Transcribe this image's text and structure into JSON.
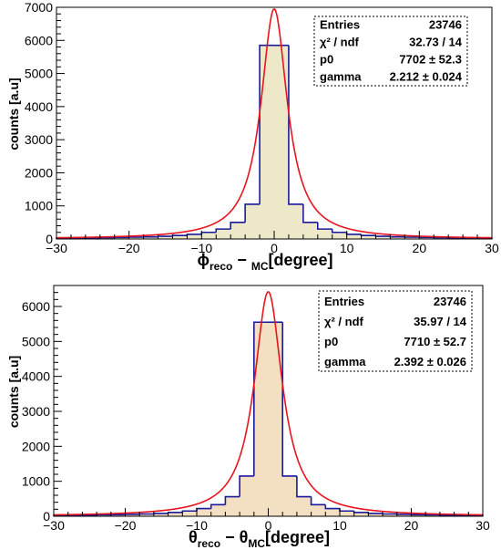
{
  "chart_data": [
    {
      "type": "histogram",
      "ylabel": "counts [a.u]",
      "xlabel": {
        "symbol": "ϕ",
        "sub1": "reco",
        "minus": "− ",
        "sub2": "MC",
        "unit": "[degree]"
      },
      "xlim": [
        -30,
        30
      ],
      "ylim": [
        0,
        7000
      ],
      "xticks": [
        "−30",
        "−20",
        "−10",
        "0",
        "10",
        "20",
        "30"
      ],
      "yticks": [
        "0",
        "1000",
        "2000",
        "3000",
        "4000",
        "5000",
        "6000",
        "7000"
      ],
      "fill_color": "#ede8c8",
      "line_color": "#1a1a9c",
      "fit_color": "#e8141e",
      "bin_width": 2,
      "x": [
        -29,
        -27,
        -25,
        -23,
        -21,
        -19,
        -17,
        -15,
        -13,
        -11,
        -9,
        -7,
        -5,
        -3,
        -1,
        1,
        3,
        5,
        7,
        9,
        11,
        13,
        15,
        17,
        19,
        21,
        23,
        25,
        27,
        29
      ],
      "values": [
        20,
        25,
        30,
        40,
        45,
        55,
        65,
        80,
        105,
        140,
        200,
        300,
        500,
        1050,
        5850,
        5850,
        1050,
        500,
        300,
        200,
        140,
        105,
        80,
        65,
        55,
        45,
        40,
        30,
        25,
        20
      ],
      "fit": {
        "function": "lorentzian",
        "p0": 7702,
        "gamma": 2.212,
        "peak": 6950
      },
      "stats": {
        "rows": [
          {
            "label": "Entries",
            "value": "23746"
          },
          {
            "label": "χ² / ndf",
            "value": "32.73 / 14"
          },
          {
            "label": "p0",
            "value": "7702 ± 52.3"
          },
          {
            "label": "gamma",
            "value": "2.212 ± 0.024"
          }
        ]
      }
    },
    {
      "type": "histogram",
      "ylabel": "counts [a.u]",
      "xlabel": {
        "symbol": "θ",
        "sub1": "reco",
        "minus": "− θ",
        "sub2": "MC",
        "unit": "[degree]"
      },
      "xlim": [
        -30,
        30
      ],
      "ylim": [
        0,
        6600
      ],
      "xticks": [
        "−30",
        "−20",
        "−10",
        "0",
        "10",
        "20",
        "30"
      ],
      "yticks": [
        "0",
        "1000",
        "2000",
        "3000",
        "4000",
        "5000",
        "6000"
      ],
      "fill_color": "#f3dfc2",
      "line_color": "#1a1a9c",
      "fit_color": "#e8141e",
      "bin_width": 2,
      "x": [
        -29,
        -27,
        -25,
        -23,
        -21,
        -19,
        -17,
        -15,
        -13,
        -11,
        -9,
        -7,
        -5,
        -3,
        -1,
        1,
        3,
        5,
        7,
        9,
        11,
        13,
        15,
        17,
        19,
        21,
        23,
        25,
        27,
        29
      ],
      "values": [
        20,
        25,
        30,
        40,
        45,
        55,
        65,
        80,
        110,
        150,
        220,
        330,
        560,
        1150,
        5550,
        5550,
        1150,
        560,
        330,
        220,
        150,
        110,
        80,
        65,
        55,
        45,
        40,
        30,
        25,
        20
      ],
      "fit": {
        "function": "lorentzian",
        "p0": 7710,
        "gamma": 2.392,
        "peak": 6420
      },
      "stats": {
        "rows": [
          {
            "label": "Entries",
            "value": "23746"
          },
          {
            "label": "χ² / ndf",
            "value": "35.97 / 14"
          },
          {
            "label": "p0",
            "value": "7710 ± 52.7"
          },
          {
            "label": "gamma",
            "value": "2.392 ± 0.026"
          }
        ]
      }
    }
  ]
}
